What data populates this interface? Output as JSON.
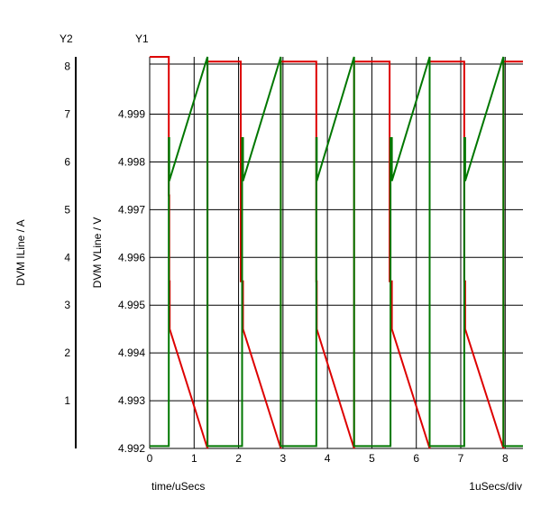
{
  "chart_data": {
    "type": "line",
    "y2_header": "Y2",
    "y1_header": "Y1",
    "y2_label": "DVM ILine / A",
    "y1_label": "DVM VLine / V",
    "xlabel": "time/uSecs",
    "x_scale_note": "1uSecs/div",
    "xlim": [
      0,
      8.4
    ],
    "y1lim": [
      4.992,
      5.0002
    ],
    "y2lim": [
      0,
      8.2
    ],
    "x_ticks": [
      "0",
      "1",
      "2",
      "3",
      "4",
      "5",
      "6",
      "7",
      "8"
    ],
    "y1_ticks": [
      "4.992",
      "4.993",
      "4.994",
      "4.995",
      "4.996",
      "4.997",
      "4.998",
      "4.999"
    ],
    "y2_ticks": [
      "1",
      "2",
      "3",
      "4",
      "5",
      "6",
      "7",
      "8"
    ],
    "grid": true,
    "colors": {
      "voltage": "#dd0000",
      "current": "#007700"
    },
    "series": [
      {
        "axis": "y1",
        "color": "#dd0000",
        "x": [
          0,
          0.43,
          0.43,
          0.44,
          0.44,
          0.45,
          0.45,
          1.3,
          1.3,
          2.05,
          2.05,
          2.1,
          2.1,
          2.95,
          2.95,
          3.75,
          3.75,
          3.76,
          3.76,
          4.6,
          4.6,
          5.4,
          5.4,
          5.45,
          5.45,
          6.3,
          6.3,
          7.08,
          7.08,
          7.1,
          7.1,
          7.96,
          7.96,
          8.4
        ],
        "y": [
          5.0002,
          5.0002,
          4.9973,
          4.9973,
          4.9955,
          4.9955,
          4.9945,
          4.992,
          5.0001,
          5.0001,
          4.9955,
          4.9955,
          4.9945,
          4.992,
          5.0001,
          5.0001,
          4.9955,
          4.9955,
          4.9945,
          4.992,
          5.0001,
          5.0001,
          4.9955,
          4.9955,
          4.9945,
          4.992,
          5.0001,
          5.0001,
          4.9955,
          4.9955,
          4.9945,
          4.992,
          5.0001,
          5.0001
        ]
      },
      {
        "axis": "y2",
        "color": "#007700",
        "x": [
          0,
          0.43,
          0.43,
          0.44,
          0.44,
          1.3,
          1.3,
          2.08,
          2.08,
          2.1,
          2.1,
          2.95,
          2.95,
          3.75,
          3.75,
          3.76,
          3.76,
          4.6,
          4.6,
          5.42,
          5.42,
          5.45,
          5.45,
          6.3,
          6.3,
          7.08,
          7.08,
          7.1,
          7.1,
          7.96,
          7.96,
          8.4
        ],
        "y": [
          0.05,
          0.05,
          6.5,
          6.5,
          5.6,
          8.2,
          0.05,
          0.05,
          6.5,
          6.5,
          5.6,
          8.2,
          0.05,
          0.05,
          6.5,
          6.5,
          5.6,
          8.2,
          0.05,
          0.05,
          6.5,
          6.5,
          5.6,
          8.2,
          0.05,
          0.05,
          6.5,
          6.5,
          5.6,
          8.2,
          0.05,
          0.05
        ]
      }
    ]
  }
}
